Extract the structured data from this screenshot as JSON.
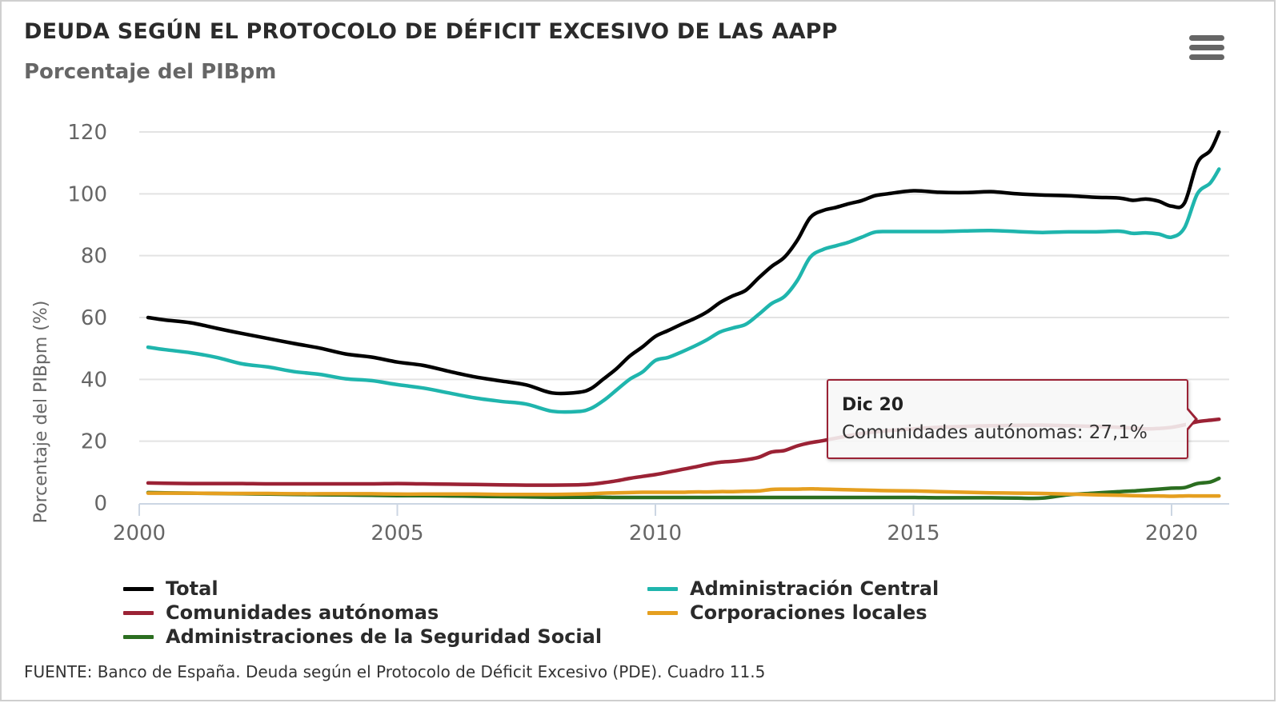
{
  "header": {
    "title": "DEUDA SEGÚN EL PROTOCOLO DE DÉFICIT EXCESIVO DE LAS AAPP",
    "subtitle": "Porcentaje del PIBpm",
    "menu_icon": "hamburger-menu-icon"
  },
  "tooltip": {
    "date": "Dic 20",
    "text": "Comunidades autónomas: 27,1%"
  },
  "source": "FUENTE: Banco de España. Deuda según el Protocolo de Déficit Excesivo (PDE). Cuadro 11.5",
  "chart_data": {
    "type": "line",
    "title": "DEUDA SEGÚN EL PROTOCOLO DE DÉFICIT EXCESIVO DE LAS AAPP",
    "subtitle": "Porcentaje del PIBpm",
    "xlabel": "",
    "ylabel": "Porcentaje del PIBpm (%)",
    "xlim": [
      2000,
      2021.1
    ],
    "ylim": [
      0,
      120
    ],
    "xticks": [
      2000,
      2005,
      2010,
      2015,
      2020
    ],
    "yticks": [
      0,
      20,
      40,
      60,
      80,
      100,
      120
    ],
    "grid": true,
    "legend": "bottom",
    "x": [
      2000.17,
      2000.5,
      2001,
      2001.5,
      2002,
      2002.5,
      2003,
      2003.5,
      2004,
      2004.5,
      2005,
      2005.5,
      2006,
      2006.5,
      2007,
      2007.5,
      2008,
      2008.5,
      2008.75,
      2009,
      2009.25,
      2009.5,
      2009.75,
      2010,
      2010.25,
      2010.5,
      2010.75,
      2011,
      2011.25,
      2011.5,
      2011.75,
      2012,
      2012.25,
      2012.5,
      2012.75,
      2013,
      2013.25,
      2013.5,
      2013.75,
      2014,
      2014.25,
      2014.5,
      2015,
      2015.5,
      2016,
      2016.5,
      2017,
      2017.5,
      2018,
      2018.5,
      2019,
      2019.25,
      2019.5,
      2019.75,
      2020,
      2020.25,
      2020.5,
      2020.75,
      2020.92
    ],
    "series": [
      {
        "name": "Total",
        "color": "#000000",
        "values": [
          60,
          59.2,
          58.3,
          56.5,
          54.8,
          53.2,
          51.6,
          50.1,
          48.2,
          47.2,
          45.6,
          44.5,
          42.6,
          40.8,
          39.5,
          38.2,
          35.6,
          35.8,
          37.0,
          40.2,
          43.5,
          47.5,
          50.5,
          53.9,
          55.8,
          57.8,
          59.6,
          61.8,
          64.8,
          67.0,
          68.8,
          72.8,
          76.5,
          79.5,
          85.0,
          92.3,
          94.6,
          95.6,
          96.8,
          97.8,
          99.4,
          100.0,
          101.0,
          100.5,
          100.4,
          100.7,
          100.0,
          99.6,
          99.4,
          98.9,
          98.6,
          97.9,
          98.3,
          97.6,
          96.0,
          97.0,
          110.0,
          114.0,
          120.0
        ]
      },
      {
        "name": "Administración Central",
        "color": "#1fb5ad",
        "values": [
          50.4,
          49.6,
          48.6,
          47.1,
          45.0,
          44.0,
          42.5,
          41.6,
          40.2,
          39.6,
          38.3,
          37.2,
          35.6,
          34.0,
          32.9,
          32.0,
          29.7,
          29.6,
          30.6,
          33.2,
          36.6,
          40.0,
          42.4,
          46.1,
          47.1,
          48.8,
          50.7,
          52.8,
          55.3,
          56.6,
          57.8,
          61.0,
          64.5,
          66.8,
          72.0,
          79.5,
          82.0,
          83.2,
          84.4,
          86.0,
          87.6,
          87.8,
          87.8,
          87.8,
          88.0,
          88.1,
          87.8,
          87.5,
          87.7,
          87.7,
          87.9,
          87.2,
          87.4,
          87.0,
          86.0,
          89.0,
          100.0,
          103.5,
          108.0
        ]
      },
      {
        "name": "Comunidades autónomas",
        "color": "#9b2235",
        "values": [
          6.5,
          6.4,
          6.3,
          6.3,
          6.3,
          6.2,
          6.2,
          6.2,
          6.2,
          6.2,
          6.3,
          6.2,
          6.1,
          6.0,
          5.9,
          5.8,
          5.8,
          5.9,
          6.1,
          6.6,
          7.2,
          8.0,
          8.6,
          9.2,
          10.0,
          10.8,
          11.6,
          12.5,
          13.2,
          13.5,
          14.0,
          14.8,
          16.5,
          17.0,
          18.5,
          19.5,
          20.2,
          21.0,
          21.8,
          22.5,
          23.0,
          23.4,
          24.0,
          24.5,
          24.8,
          25.0,
          25.1,
          25.2,
          25.0,
          24.8,
          24.5,
          24.2,
          24.0,
          24.1,
          24.5,
          25.3,
          26.3,
          26.8,
          27.1
        ]
      },
      {
        "name": "Corporaciones locales",
        "color": "#e59f1f",
        "values": [
          3.2,
          3.2,
          3.2,
          3.1,
          3.1,
          3.1,
          3.0,
          3.0,
          3.0,
          3.0,
          2.9,
          2.9,
          2.9,
          2.9,
          2.8,
          2.8,
          2.8,
          2.9,
          3.0,
          3.2,
          3.3,
          3.4,
          3.5,
          3.5,
          3.5,
          3.5,
          3.6,
          3.6,
          3.7,
          3.7,
          3.8,
          3.9,
          4.4,
          4.5,
          4.5,
          4.6,
          4.5,
          4.4,
          4.3,
          4.2,
          4.1,
          4.0,
          3.9,
          3.7,
          3.5,
          3.3,
          3.2,
          3.1,
          2.9,
          2.7,
          2.5,
          2.4,
          2.3,
          2.3,
          2.2,
          2.3,
          2.3,
          2.3,
          2.3
        ]
      },
      {
        "name": "Administraciones de la Seguridad Social",
        "color": "#2b6e20",
        "values": [
          3.4,
          3.3,
          3.2,
          3.1,
          3.0,
          2.9,
          2.8,
          2.7,
          2.6,
          2.5,
          2.4,
          2.4,
          2.3,
          2.2,
          2.1,
          2.0,
          1.9,
          1.9,
          1.9,
          1.9,
          1.8,
          1.8,
          1.8,
          1.8,
          1.8,
          1.8,
          1.8,
          1.8,
          1.8,
          1.8,
          1.8,
          1.8,
          1.8,
          1.8,
          1.8,
          1.8,
          1.8,
          1.8,
          1.8,
          1.8,
          1.8,
          1.8,
          1.8,
          1.7,
          1.7,
          1.7,
          1.6,
          1.6,
          2.7,
          3.2,
          3.7,
          3.9,
          4.2,
          4.5,
          4.8,
          5.0,
          6.3,
          6.8,
          8.0
        ]
      }
    ],
    "tooltip": {
      "series": "Comunidades autónomas",
      "x_label": "Dic 20",
      "value": 27.1
    }
  },
  "legend": {
    "items": [
      {
        "label": "Total",
        "color": "#000000"
      },
      {
        "label": "Administración Central",
        "color": "#1fb5ad"
      },
      {
        "label": "Comunidades autónomas",
        "color": "#9b2235"
      },
      {
        "label": "Corporaciones locales",
        "color": "#e59f1f"
      },
      {
        "label": "Administraciones de la Seguridad Social",
        "color": "#2b6e20"
      }
    ]
  }
}
